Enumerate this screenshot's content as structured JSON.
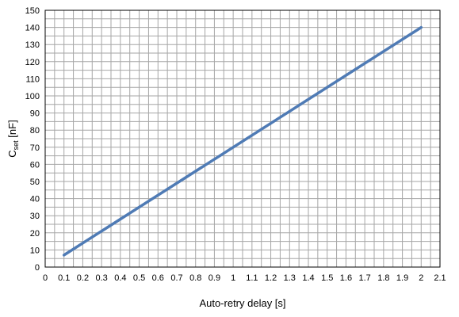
{
  "chart_data": {
    "type": "line",
    "title": "",
    "xlabel": "Auto-retry delay [s]",
    "ylabel": {
      "main": "C",
      "sub": "set",
      "unit": " [nF]"
    },
    "xlim": [
      0,
      2.1
    ],
    "ylim": [
      0,
      150
    ],
    "x_ticks": [
      "0",
      "0.1",
      "0.2",
      "0.3",
      "0.4",
      "0.5",
      "0.6",
      "0.7",
      "0.8",
      "0.9",
      "1",
      "1.1",
      "1.2",
      "1.3",
      "1.4",
      "1.5",
      "1.6",
      "1.7",
      "1.8",
      "1.9",
      "2",
      "2.1"
    ],
    "y_ticks": [
      "0",
      "10",
      "20",
      "30",
      "40",
      "50",
      "60",
      "70",
      "80",
      "90",
      "100",
      "110",
      "120",
      "130",
      "140",
      "150"
    ],
    "grid": true,
    "series": [
      {
        "color": "#4f7bb5",
        "x": [
          0.1,
          2.0
        ],
        "y": [
          7,
          140
        ]
      }
    ]
  }
}
